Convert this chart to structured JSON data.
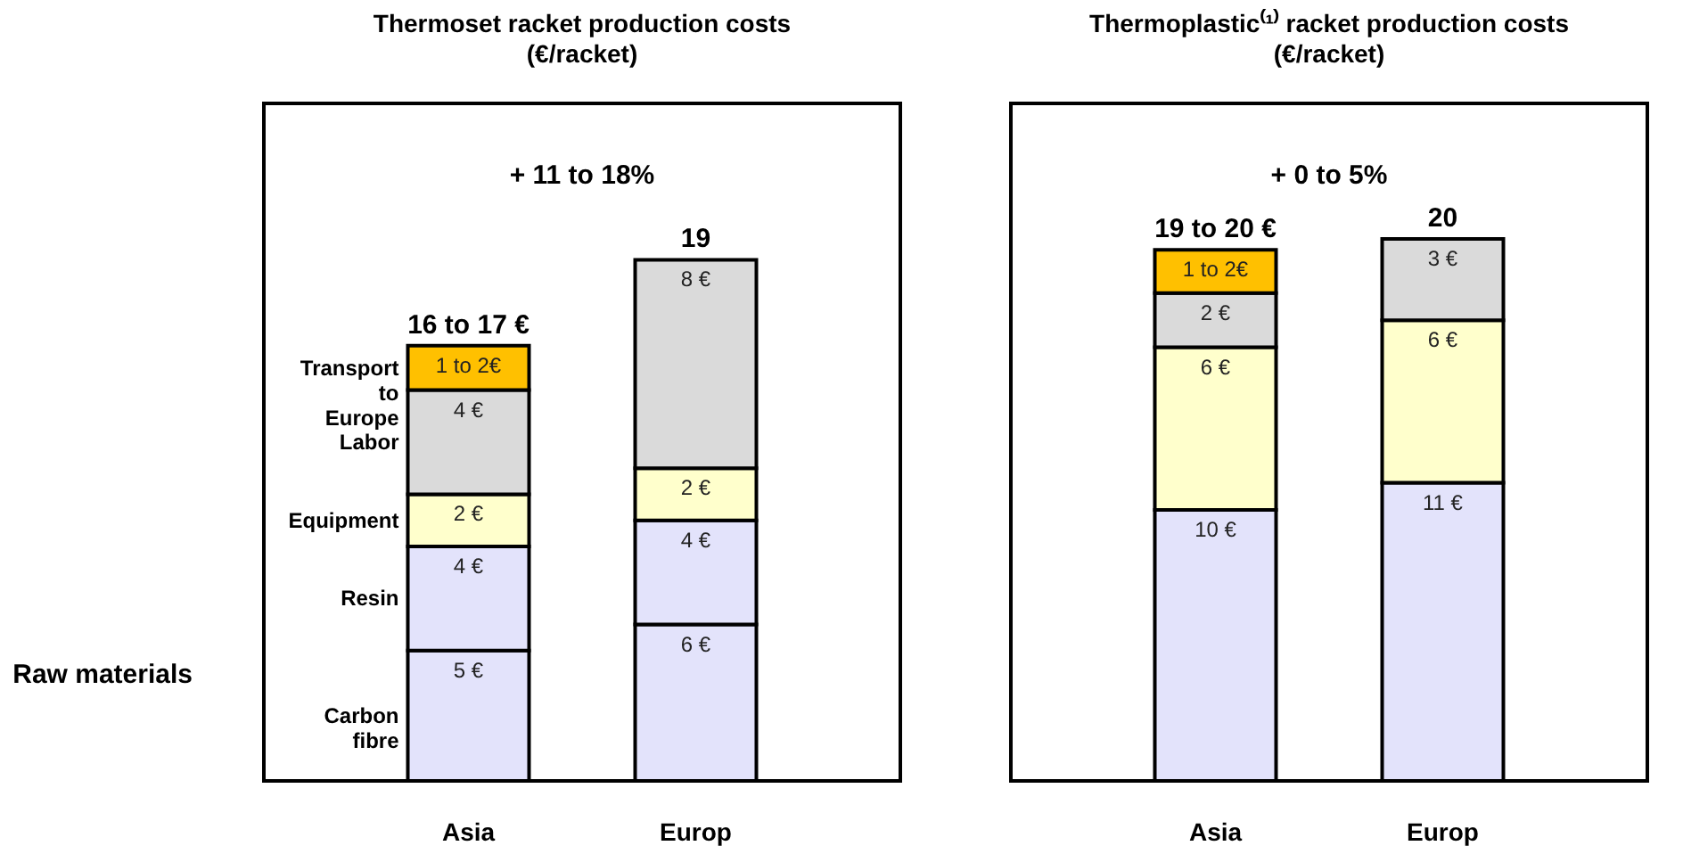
{
  "chart_data": [
    {
      "type": "bar",
      "stacked": true,
      "title": "Thermoset racket production costs",
      "subtitle": "(€/racket)",
      "categories": [
        "Asia",
        "Europ"
      ],
      "ylim": [
        0,
        26
      ],
      "grid": false,
      "series": [
        {
          "name": "Carbon fibre",
          "color": "#e3e3fb",
          "values": [
            5,
            6
          ],
          "value_labels": [
            "5 €",
            "6 €"
          ]
        },
        {
          "name": "Resin",
          "color": "#e3e3fb",
          "values": [
            4,
            4
          ],
          "value_labels": [
            "4 €",
            "4 €"
          ]
        },
        {
          "name": "Equipment",
          "color": "#ffffcc",
          "values": [
            2,
            2
          ],
          "value_labels": [
            "2 €",
            "2 €"
          ]
        },
        {
          "name": "Labor",
          "color": "#dadada",
          "values": [
            4,
            8
          ],
          "value_labels": [
            "4 €",
            "8 €"
          ]
        },
        {
          "name": "Transport to Europe",
          "color": "#ffc000",
          "values": [
            1.7,
            null
          ],
          "value_labels": [
            "1 to 2€",
            null
          ]
        }
      ],
      "totals": [
        "16 to 17 €",
        "19"
      ],
      "annotations": [
        "+ 11 to 18%",
        "Raw materials"
      ]
    },
    {
      "type": "bar",
      "stacked": true,
      "title": "Thermoplastic⁽¹⁾ racket production costs",
      "subtitle": "(€/racket)",
      "categories": [
        "Asia",
        "Europ"
      ],
      "ylim": [
        0,
        25
      ],
      "grid": false,
      "series": [
        {
          "color": "#e3e3fb",
          "values": [
            10,
            11
          ],
          "value_labels": [
            "10 €",
            "11 €"
          ]
        },
        {
          "color": "#ffffcc",
          "values": [
            6,
            6
          ],
          "value_labels": [
            "6 €",
            "6 €"
          ]
        },
        {
          "color": "#dadada",
          "values": [
            2,
            3
          ],
          "value_labels": [
            "2 €",
            "3 €"
          ]
        },
        {
          "color": "#ffc000",
          "values": [
            1.6,
            null
          ],
          "value_labels": [
            "1 to 2€",
            null
          ]
        }
      ],
      "totals": [
        "19 to 20 €",
        "20"
      ],
      "annotations": [
        "+ 0 to 5%"
      ]
    }
  ]
}
